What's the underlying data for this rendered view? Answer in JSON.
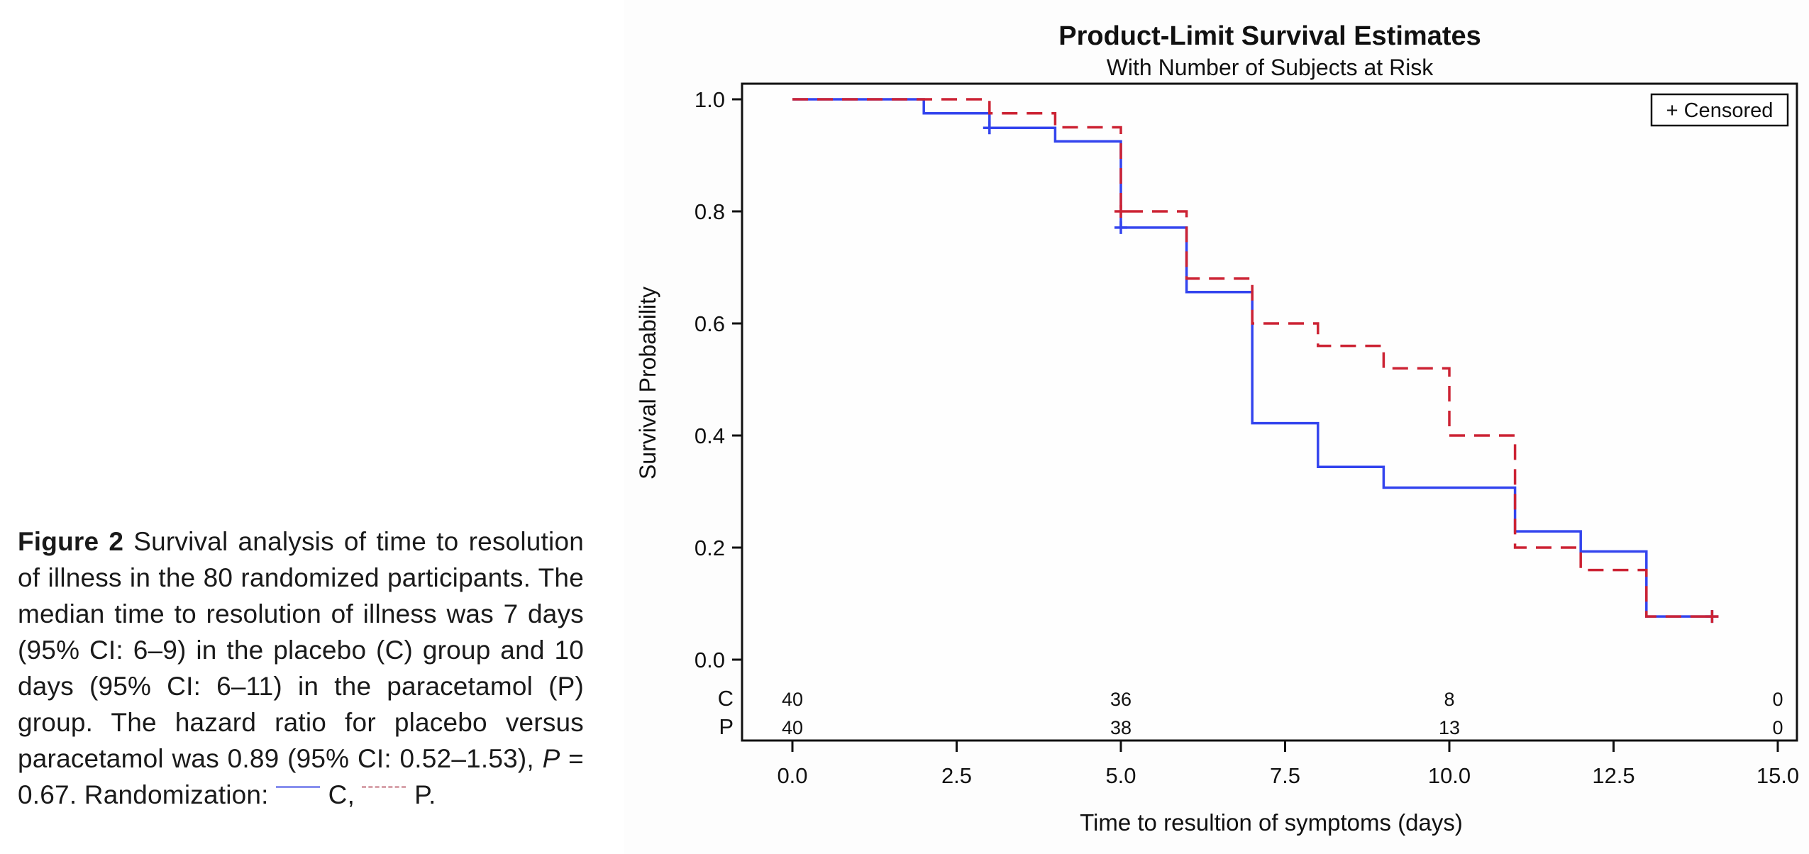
{
  "caption": {
    "figure_label": "Figure 2",
    "text_before_legend": "Survival analysis of time to resolution of illness in the 80 randomized participants. The median time to resolution of illness was 7 days (95% CI: 6–9) in the placebo (C) group and 10 days (95% CI: 6–11) in the paracetamol (P) group. The hazard ratio for placebo versus paracetamol was 0.89 (95% CI: 0.52–1.53), ",
    "p_symbol": "P",
    "p_value_text": " = 0.67.",
    "randomization_label": "Randomization:",
    "legend_c": "C,",
    "legend_p": "P."
  },
  "chart_data": {
    "type": "line",
    "subtype": "kaplan-meier-step",
    "title": "Product-Limit Survival Estimates",
    "subtitle": "With Number of Subjects at Risk",
    "xlabel": "Time to resultion of symptoms (days)",
    "ylabel": "Survival Probability",
    "xlim": [
      -0.7,
      15.4
    ],
    "ylim": [
      0.0,
      1.0
    ],
    "x_ticks": [
      "0.0",
      "2.5",
      "5.0",
      "7.5",
      "10.0",
      "12.5",
      "15.0"
    ],
    "x_tick_values": [
      0,
      2.5,
      5,
      7.5,
      10,
      12.5,
      15
    ],
    "y_ticks": [
      "0.0",
      "0.2",
      "0.4",
      "0.6",
      "0.8",
      "1.0"
    ],
    "y_tick_values": [
      0,
      0.2,
      0.4,
      0.6,
      0.8,
      1.0
    ],
    "grid": false,
    "legend": {
      "label": "+ Censored",
      "position": "top-right"
    },
    "series": [
      {
        "name": "C",
        "color": "#3344ee",
        "style": "solid",
        "steps": [
          [
            0,
            1.0
          ],
          [
            2,
            0.975
          ],
          [
            3,
            0.949
          ],
          [
            4,
            0.925
          ],
          [
            5,
            0.771
          ],
          [
            6,
            0.656
          ],
          [
            7,
            0.422
          ],
          [
            8,
            0.344
          ],
          [
            9,
            0.307
          ],
          [
            11,
            0.229
          ],
          [
            12,
            0.193
          ],
          [
            13,
            0.077
          ]
        ],
        "end_x": 14,
        "censored": [
          [
            3,
            0.949
          ],
          [
            5,
            0.771
          ],
          [
            14,
            0.077
          ]
        ]
      },
      {
        "name": "P",
        "color": "#cc2233",
        "style": "dashed",
        "steps": [
          [
            0,
            1.0
          ],
          [
            3,
            0.975
          ],
          [
            4,
            0.95
          ],
          [
            5,
            0.8
          ],
          [
            6,
            0.68
          ],
          [
            7,
            0.6
          ],
          [
            8,
            0.56
          ],
          [
            9,
            0.52
          ],
          [
            10,
            0.4
          ],
          [
            11,
            0.2
          ],
          [
            12,
            0.16
          ],
          [
            13,
            0.077
          ]
        ],
        "end_x": 14,
        "censored": [
          [
            5,
            0.8
          ],
          [
            14,
            0.077
          ]
        ]
      }
    ],
    "at_risk": {
      "x": [
        0,
        5,
        10,
        15
      ],
      "rows": [
        {
          "label": "C",
          "values": [
            "40",
            "36",
            "8",
            "0"
          ]
        },
        {
          "label": "P",
          "values": [
            "40",
            "38",
            "13",
            "0"
          ]
        }
      ]
    }
  }
}
